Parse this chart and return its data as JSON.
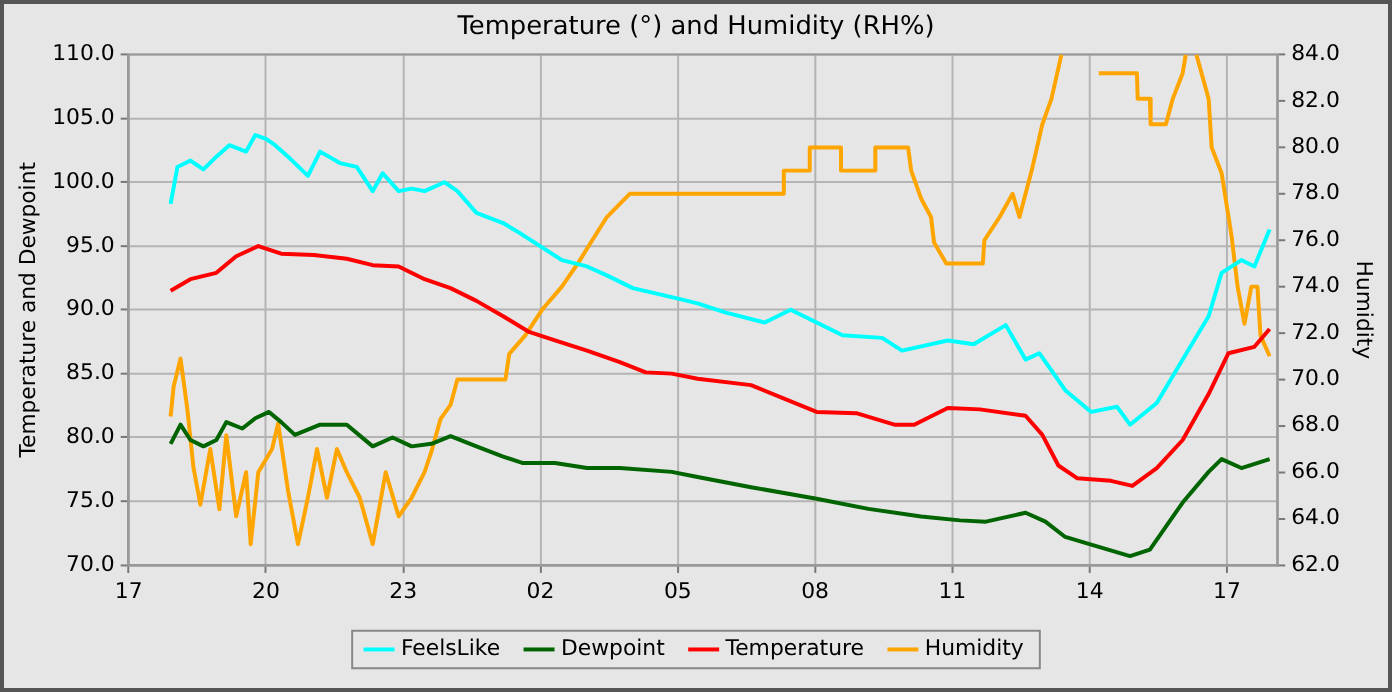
{
  "chart_data": {
    "type": "line",
    "title": "Temperature (°) and Humidity (RH%)",
    "ylabel": "Temperature and Dewpoint",
    "y2label": "Humidity",
    "xlim": [
      "--01-01T17:00",
      "--01-02T18:06"
    ],
    "xticks": [
      {
        "value": "--01-01T17:00",
        "label": "17"
      },
      {
        "value": "--01-01T20:00",
        "label": "20"
      },
      {
        "value": "--01-01T23:00",
        "label": "23"
      },
      {
        "value": "--01-02T02:00",
        "label": "02"
      },
      {
        "value": "--01-02T05:00",
        "label": "05"
      },
      {
        "value": "--01-02T08:00",
        "label": "08"
      },
      {
        "value": "--01-02T11:00",
        "label": "11"
      },
      {
        "value": "--01-02T14:00",
        "label": "14"
      },
      {
        "value": "--01-02T17:00",
        "label": "17"
      }
    ],
    "ylim": [
      70,
      110
    ],
    "yticks": [
      {
        "value": 70,
        "label": "70.0"
      },
      {
        "value": 75,
        "label": "75.0"
      },
      {
        "value": 80,
        "label": "80.0"
      },
      {
        "value": 85,
        "label": "85.0"
      },
      {
        "value": 90,
        "label": "90.0"
      },
      {
        "value": 95,
        "label": "95.0"
      },
      {
        "value": 100,
        "label": "100.0"
      },
      {
        "value": 105,
        "label": "105.0"
      },
      {
        "value": 110,
        "label": "110.0"
      }
    ],
    "y2lim": [
      62,
      84
    ],
    "y2ticks": [
      {
        "value": 62,
        "label": "62.0"
      },
      {
        "value": 64,
        "label": "64.0"
      },
      {
        "value": 66,
        "label": "66.0"
      },
      {
        "value": 68,
        "label": "68.0"
      },
      {
        "value": 70,
        "label": "70.0"
      },
      {
        "value": 72,
        "label": "72.0"
      },
      {
        "value": 74,
        "label": "74.0"
      },
      {
        "value": 76,
        "label": "76.0"
      },
      {
        "value": 78,
        "label": "78.0"
      },
      {
        "value": 80,
        "label": "80.0"
      },
      {
        "value": 82,
        "label": "82.0"
      },
      {
        "value": 84,
        "label": "84.0"
      }
    ],
    "grid": true,
    "legend": "bottom",
    "marker": "none",
    "line_style": "solid",
    "series": [
      {
        "name": "FeelsLike",
        "color": "#00ffff",
        "x": [
          "--01-01T17:55",
          "--01-01T18:04",
          "--01-01T18:21",
          "--01-01T18:38",
          "--01-01T18:55",
          "--01-01T19:12",
          "--01-01T19:34",
          "--01-01T19:46",
          "--01-01T20:00",
          "--01-01T20:12",
          "--01-01T20:29",
          "--01-01T20:55",
          "--01-01T21:11",
          "--01-01T21:37",
          "--01-01T21:59",
          "--01-01T22:20",
          "--01-01T22:33",
          "--01-01T22:54",
          "--01-01T23:11",
          "--01-01T23:28",
          "--01-01T23:54",
          "--01-02T00:11",
          "--01-02T00:36",
          "--01-02T01:11",
          "--01-02T01:36",
          "--01-02T02:02",
          "--01-02T02:28",
          "--01-02T03:01",
          "--01-02T03:27",
          "--01-02T04:01",
          "--01-02T04:52",
          "--01-02T05:26",
          "--01-02T06:02",
          "--01-02T06:54",
          "--01-02T07:28",
          "--01-02T08:02",
          "--01-02T08:36",
          "--01-02T09:28",
          "--01-02T09:54",
          "--01-02T10:54",
          "--01-02T11:28",
          "--01-02T12:10",
          "--01-02T12:36",
          "--01-02T12:54",
          "--01-02T13:28",
          "--01-02T14:02",
          "--01-02T14:36",
          "--01-02T14:53",
          "--01-02T15:28",
          "--01-02T16:02",
          "--01-02T16:36",
          "--01-02T16:53",
          "--01-02T17:19",
          "--01-02T17:36",
          "--01-02T17:56"
        ],
        "values": [
          98.3,
          101.2,
          101.7,
          101.0,
          102,
          102.9,
          102.4,
          103.7,
          103.4,
          102.9,
          102,
          100.5,
          102.4,
          101.5,
          101.2,
          99.3,
          100.7,
          99.3,
          99.5,
          99.3,
          100,
          99.3,
          97.6,
          96.8,
          95.9,
          94.9,
          93.9,
          93.4,
          92.7,
          91.7,
          91,
          90.5,
          89.8,
          89,
          90,
          89,
          88,
          87.8,
          86.8,
          87.6,
          87.3,
          88.8,
          86.1,
          86.6,
          83.7,
          82,
          82.4,
          81,
          82.7,
          86.1,
          89.5,
          92.9,
          93.9,
          93.4,
          96.3
        ]
      },
      {
        "name": "Dewpoint",
        "color": "#006400",
        "x": [
          "--01-01T17:55",
          "--01-01T18:08",
          "--01-01T18:21",
          "--01-01T18:38",
          "--01-01T18:55",
          "--01-01T19:08",
          "--01-01T19:29",
          "--01-01T19:46",
          "--01-01T20:04",
          "--01-01T20:20",
          "--01-01T20:38",
          "--01-01T21:11",
          "--01-01T21:46",
          "--01-01T22:20",
          "--01-01T22:46",
          "--01-01T23:11",
          "--01-01T23:37",
          "--01-02T00:02",
          "--01-02T00:36",
          "--01-02T01:11",
          "--01-02T01:36",
          "--01-02T02:19",
          "--01-02T03:01",
          "--01-02T03:44",
          "--01-02T04:52",
          "--01-02T05:26",
          "--01-02T06:36",
          "--01-02T08:02",
          "--01-02T09:10",
          "--01-02T10:19",
          "--01-02T11:10",
          "--01-02T11:44",
          "--01-02T12:36",
          "--01-02T13:02",
          "--01-02T13:28",
          "--01-02T14:02",
          "--01-02T14:53",
          "--01-02T15:19",
          "--01-02T16:02",
          "--01-02T16:36",
          "--01-02T16:53",
          "--01-02T17:19",
          "--01-02T17:56"
        ],
        "values": [
          79.5,
          81,
          79.8,
          79.3,
          79.8,
          81.2,
          80.7,
          81.5,
          82,
          81.2,
          80.2,
          81,
          81,
          79.3,
          80,
          79.3,
          79.5,
          80.1,
          79.3,
          78.5,
          78,
          78,
          77.6,
          77.6,
          77.3,
          76.9,
          76.1,
          75.2,
          74.4,
          73.8,
          73.5,
          73.4,
          74.1,
          73.4,
          72.2,
          71.6,
          70.7,
          71.2,
          74.9,
          77.3,
          78.3,
          77.6,
          78.3
        ]
      },
      {
        "name": "Temperature",
        "color": "#ff0000",
        "x": [
          "--01-01T17:55",
          "--01-01T18:21",
          "--01-01T18:55",
          "--01-01T19:21",
          "--01-01T19:50",
          "--01-01T20:20",
          "--01-01T21:03",
          "--01-01T21:46",
          "--01-01T22:20",
          "--01-01T22:54",
          "--01-01T23:28",
          "--01-02T00:02",
          "--01-02T00:36",
          "--01-02T01:11",
          "--01-02T01:44",
          "--01-02T02:19",
          "--01-02T03:01",
          "--01-02T03:44",
          "--01-02T04:18",
          "--01-02T04:52",
          "--01-02T05:26",
          "--01-02T06:36",
          "--01-02T08:02",
          "--01-02T08:54",
          "--01-02T09:44",
          "--01-02T10:10",
          "--01-02T10:54",
          "--01-02T11:36",
          "--01-02T12:36",
          "--01-02T12:58",
          "--01-02T13:19",
          "--01-02T13:44",
          "--01-02T14:28",
          "--01-02T14:56",
          "--01-02T15:28",
          "--01-02T16:02",
          "--01-02T16:36",
          "--01-02T17:02",
          "--01-02T17:36",
          "--01-02T17:56"
        ],
        "values": [
          91.5,
          92.4,
          92.9,
          94.2,
          95,
          94.4,
          94.3,
          94,
          93.5,
          93.4,
          92.4,
          91.7,
          90.7,
          89.5,
          88.3,
          87.6,
          86.8,
          85.9,
          85.1,
          85,
          84.6,
          84.1,
          82,
          81.9,
          81,
          81,
          82.3,
          82.2,
          81.7,
          80.2,
          77.8,
          76.8,
          76.6,
          76.2,
          77.6,
          79.8,
          83.4,
          86.6,
          87.1,
          88.5
        ]
      },
      {
        "name": "Humidity",
        "color": "#ffa500",
        "axis": "y2",
        "x": [
          "--01-01T17:55",
          "--01-01T17:59",
          "--01-01T18:08",
          "--01-01T18:17",
          "--01-01T18:25",
          "--01-01T18:34",
          "--01-01T18:47",
          "--01-01T18:59",
          "--01-01T19:08",
          "--01-01T19:21",
          "--01-01T19:34",
          "--01-01T19:40",
          "--01-01T19:50",
          "--01-01T20:08",
          "--01-01T20:16",
          "--01-01T20:29",
          "--01-01T20:42",
          "--01-01T20:55",
          "--01-01T21:07",
          "--01-01T21:20",
          "--01-01T21:33",
          "--01-01T21:46",
          "--01-01T22:03",
          "--01-01T22:20",
          "--01-01T22:37",
          "--01-01T22:54",
          "--01-01T23:11",
          "--01-01T23:28",
          "--01-01T23:37",
          "--01-01T23:49",
          "--01-02T00:02",
          "--01-02T00:11",
          "--01-02T01:14",
          "--01-02T01:19",
          "--01-02T01:40",
          "--01-02T02:02",
          "--01-02T02:28",
          "--01-02T02:49",
          "--01-02T03:06",
          "--01-02T03:27",
          "--01-02T03:57",
          "--01-02T07:19",
          "--01-02T07:19",
          "--01-02T07:53",
          "--01-02T07:53",
          "--01-02T08:34",
          "--01-02T08:34",
          "--01-02T09:19",
          "--01-02T09:19",
          "--01-02T10:02",
          "--01-02T10:06",
          "--01-02T10:19",
          "--01-02T10:32",
          "--01-02T10:36",
          "--01-02T10:52",
          "--01-02T11:40",
          "--01-02T11:42",
          "--01-02T12:02",
          "--01-02T12:19",
          "--01-02T12:28",
          "--01-02T12:36",
          "--01-02T12:44",
          "--01-02T12:58",
          "--01-02T13:10",
          "--01-02T13:23",
          "--01-02T13:48",
          "--01-02T14:12",
          "--01-02T15:02",
          "--01-02T15:03",
          "--01-02T15:19",
          "--01-02T15:20",
          "--01-02T15:40",
          "--01-02T15:49",
          "--01-02T16:02",
          "--01-02T16:06",
          "--01-02T16:12",
          "--01-02T16:20",
          "--01-02T16:36",
          "--01-02T16:40",
          "--01-02T16:53",
          "--01-02T17:06",
          "--01-02T17:14",
          "--01-02T17:23",
          "--01-02T17:32",
          "--01-02T17:40",
          "--01-02T17:44",
          "--01-02T17:56"
        ],
        "values": [
          68.4,
          69.7,
          70.9,
          68.7,
          66.2,
          64.6,
          67,
          64.4,
          67.6,
          64.1,
          66,
          62.9,
          66,
          67,
          68.1,
          65.2,
          62.9,
          64.9,
          67,
          64.9,
          67,
          66,
          64.9,
          62.9,
          66,
          64.1,
          64.9,
          66,
          66.9,
          68.3,
          68.9,
          70,
          70,
          71.1,
          71.9,
          73,
          74,
          75,
          75.9,
          77,
          78,
          78,
          79,
          79,
          80,
          80,
          79,
          79,
          80,
          80,
          79,
          77.8,
          77,
          75.9,
          75,
          75,
          76,
          77,
          78,
          77,
          78,
          79,
          81,
          82.1,
          84,
          null,
          83.2,
          83.2,
          82.1,
          82.1,
          81,
          81,
          82.1,
          83.2,
          84,
          null,
          84,
          82.1,
          80,
          78.9,
          76.2,
          74,
          72.4,
          74,
          74,
          71.9,
          71
        ]
      }
    ]
  }
}
